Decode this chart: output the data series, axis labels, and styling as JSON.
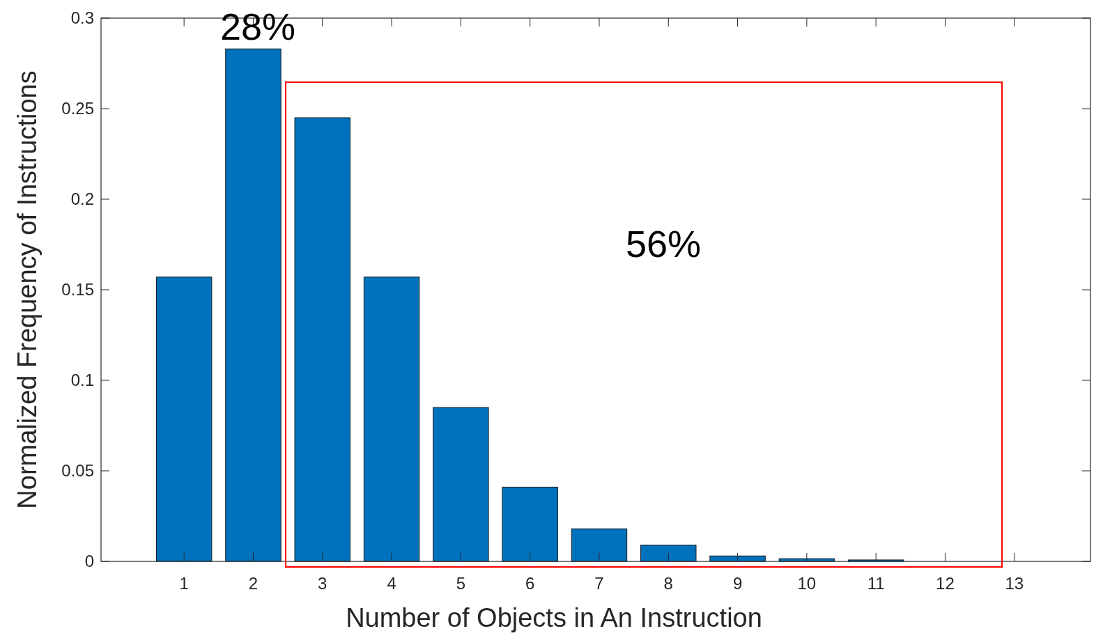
{
  "chart_data": {
    "type": "bar",
    "xlabel": "Number of Objects in An Instruction",
    "ylabel": "Normalized Frequency of Instructions",
    "x": [
      1,
      2,
      3,
      4,
      5,
      6,
      7,
      8,
      9,
      10,
      11
    ],
    "values": [
      0.157,
      0.283,
      0.245,
      0.157,
      0.085,
      0.041,
      0.018,
      0.009,
      0.003,
      0.0015,
      0.0008
    ],
    "color": "#0072bd",
    "xlim": [
      -0.2,
      14.1
    ],
    "xticks": [
      1,
      2,
      3,
      4,
      5,
      6,
      7,
      8,
      9,
      10,
      11,
      12,
      13
    ],
    "ylim": [
      0,
      0.3
    ],
    "yticks": [
      0,
      0.05,
      0.1,
      0.15,
      0.2,
      0.25,
      0.3
    ],
    "grid": false,
    "annotations": [
      "28%",
      "56%"
    ]
  }
}
